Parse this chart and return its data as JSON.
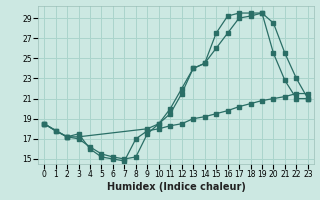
{
  "xlabel": "Humidex (Indice chaleur)",
  "bg_color": "#cce8e2",
  "grid_color": "#aad4cc",
  "line_color": "#2a6e66",
  "xlim": [
    -0.5,
    23.5
  ],
  "ylim": [
    14.5,
    30.2
  ],
  "yticks": [
    15,
    17,
    19,
    21,
    23,
    25,
    27,
    29
  ],
  "xticks": [
    0,
    1,
    2,
    3,
    4,
    5,
    6,
    7,
    8,
    9,
    10,
    11,
    12,
    13,
    14,
    15,
    16,
    17,
    18,
    19,
    20,
    21,
    22,
    23
  ],
  "line1_x": [
    0,
    1,
    2,
    3,
    4,
    5,
    6,
    7,
    8,
    9,
    10,
    11,
    12,
    13,
    14,
    15,
    16,
    17,
    18,
    19,
    20,
    21,
    22,
    23
  ],
  "line1_y": [
    18.5,
    17.8,
    17.2,
    17.5,
    16.0,
    15.2,
    15.0,
    14.8,
    17.0,
    17.8,
    18.0,
    18.3,
    18.5,
    19.0,
    19.2,
    19.5,
    19.8,
    20.2,
    20.5,
    20.8,
    21.0,
    21.2,
    21.5,
    21.5
  ],
  "line2_x": [
    0,
    1,
    2,
    3,
    4,
    5,
    6,
    7,
    8,
    9,
    10,
    11,
    12,
    13,
    14,
    15,
    16,
    17,
    18,
    19,
    20,
    21,
    22,
    23
  ],
  "line2_y": [
    18.5,
    17.8,
    17.2,
    17.0,
    16.2,
    15.5,
    15.2,
    15.0,
    15.2,
    17.5,
    18.5,
    19.5,
    21.5,
    24.0,
    24.5,
    26.0,
    27.5,
    29.0,
    29.2,
    29.5,
    25.5,
    22.8,
    21.0,
    21.0
  ],
  "line3_x": [
    0,
    2,
    3,
    9,
    10,
    11,
    12,
    13,
    14,
    15,
    16,
    17,
    18,
    19,
    20,
    21,
    22,
    23
  ],
  "line3_y": [
    18.5,
    17.2,
    17.2,
    18.0,
    18.5,
    20.0,
    22.0,
    24.0,
    24.5,
    27.5,
    29.2,
    29.5,
    29.5,
    29.5,
    28.5,
    25.5,
    23.0,
    21.0
  ]
}
